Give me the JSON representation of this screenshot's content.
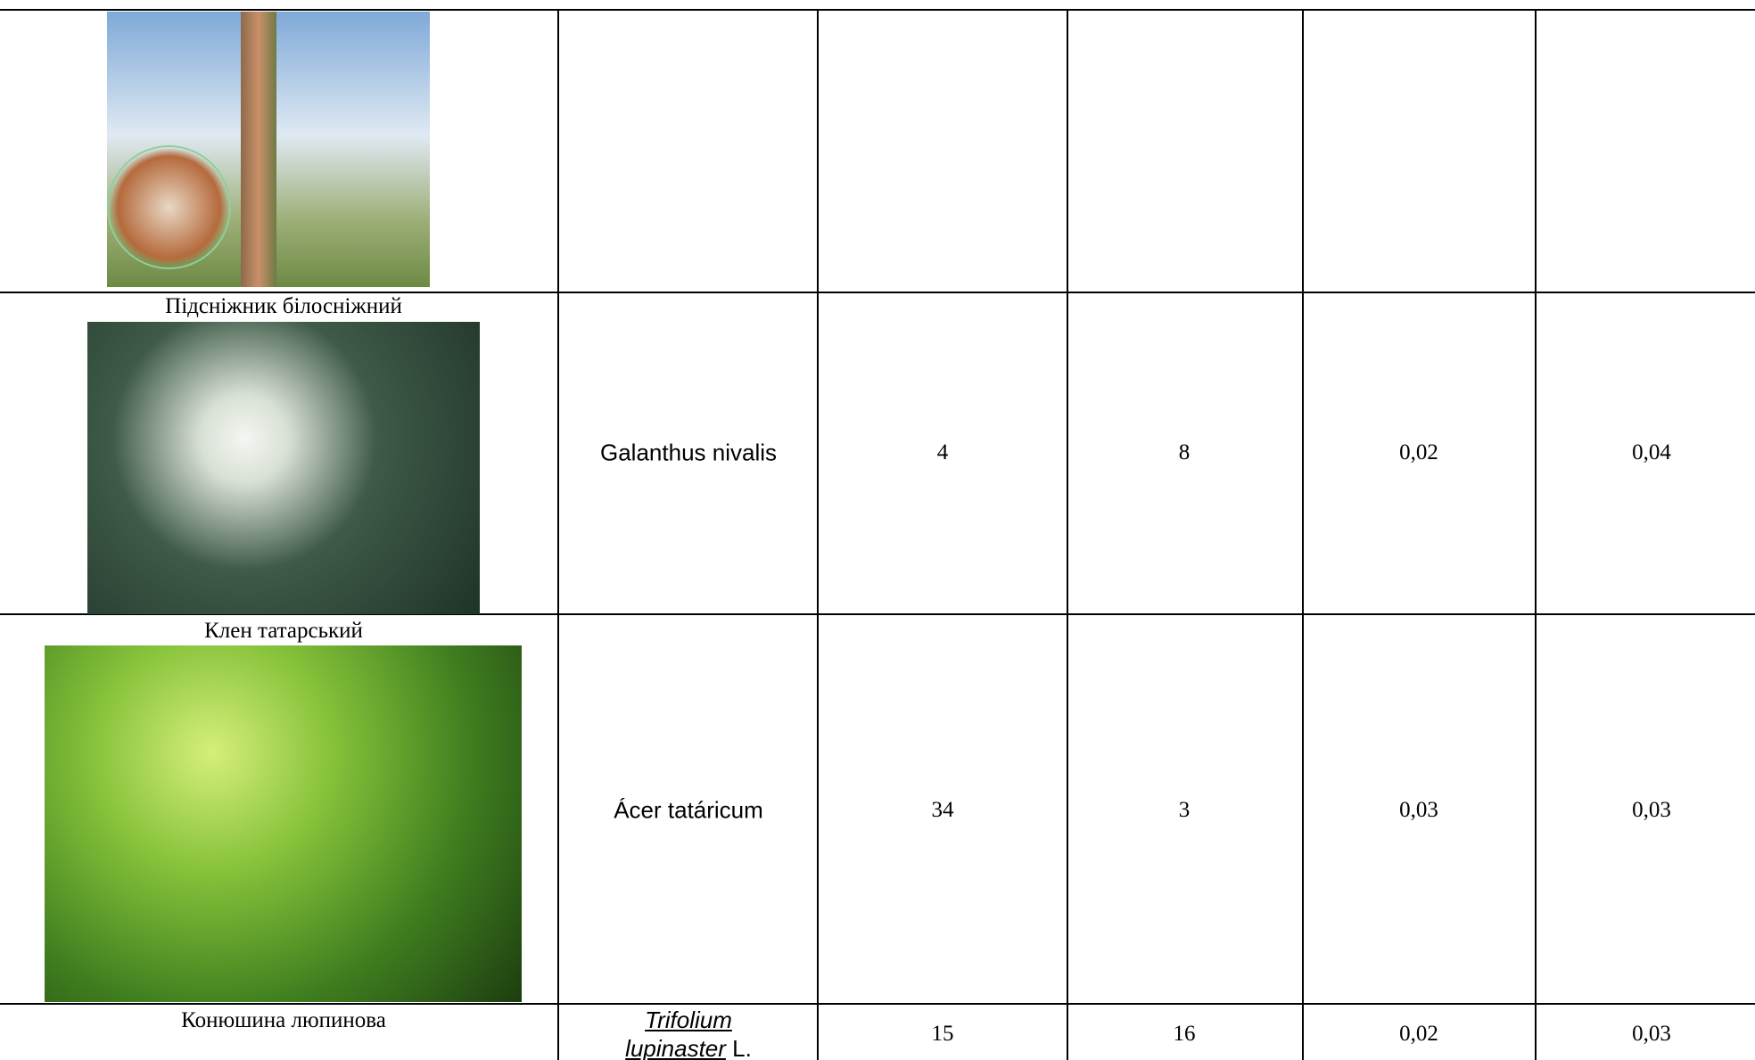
{
  "table": {
    "rows": [
      {
        "name": "Підсніжник білосніжний",
        "latin": "Galanthus nivalis",
        "cells": [
          "4",
          "8",
          "0,02",
          "0,04"
        ]
      },
      {
        "name": "Клен татарський",
        "latin": "Ácer tatáricum",
        "cells": [
          "34",
          "3",
          "0,03",
          "0,03"
        ]
      },
      {
        "name": "Конюшина люпинова",
        "latin": "Trifolium lupinaster",
        "latin_author": "L.",
        "cells": [
          "15",
          "16",
          "0,02",
          "0,03"
        ]
      }
    ]
  }
}
